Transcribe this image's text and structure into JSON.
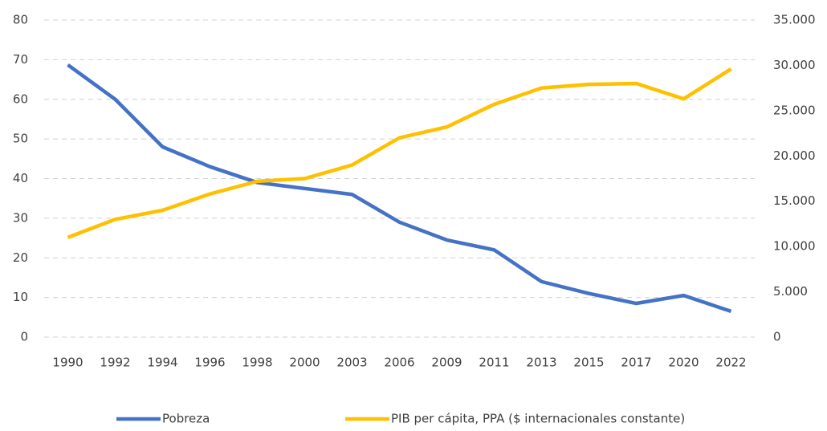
{
  "chart_data": {
    "type": "line",
    "categories": [
      "1990",
      "1992",
      "1994",
      "1996",
      "1998",
      "2000",
      "2003",
      "2006",
      "2009",
      "2011",
      "2013",
      "2015",
      "2017",
      "2020",
      "2022"
    ],
    "series": [
      {
        "name": "Pobreza",
        "color": "#4472c4",
        "values": [
          68.7,
          60,
          48,
          43,
          39,
          37.5,
          36,
          29,
          24.5,
          22,
          14,
          11,
          8.5,
          10.5,
          6.5
        ]
      },
      {
        "name": "PIB per cápita, PPA ($ internacionales constante)",
        "color": "#ffc000",
        "axis": "y2",
        "values": [
          11000,
          13000,
          14000,
          15800,
          17200,
          17500,
          19000,
          22000,
          23200,
          25700,
          27500,
          27900,
          28000,
          26300,
          29600
        ]
      }
    ],
    "ylim": [
      0,
      80
    ],
    "yticks": [
      0,
      10,
      20,
      30,
      40,
      50,
      60,
      70,
      80
    ],
    "y2lim": [
      0,
      35000
    ],
    "y2ticks": [
      0,
      {
        "value": 5000,
        "label": "5.000"
      },
      {
        "value": 10000,
        "label": "10.000"
      },
      {
        "value": 15000,
        "label": "15.000"
      },
      {
        "value": 20000,
        "label": "20.000"
      },
      {
        "value": 25000,
        "label": "25.000"
      },
      {
        "value": 30000,
        "label": "30.000"
      },
      {
        "value": 35000,
        "label": "35.000"
      }
    ],
    "grid": true,
    "legend": "bottom"
  }
}
